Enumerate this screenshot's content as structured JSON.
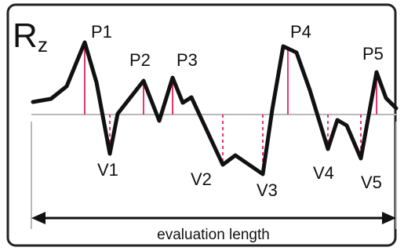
{
  "diagram": {
    "title_main": "R",
    "title_sub": "z",
    "caption": "evaluation length",
    "peak_labels": [
      "P1",
      "P2",
      "P3",
      "P4",
      "P5"
    ],
    "valley_labels": [
      "V1",
      "V2",
      "V3",
      "V4",
      "V5"
    ],
    "colors": {
      "profile": "#111111",
      "frame": "#222222",
      "mean_line": "#b9b9b9",
      "marker": "#e8366b",
      "background": "#ffffff"
    }
  }
}
